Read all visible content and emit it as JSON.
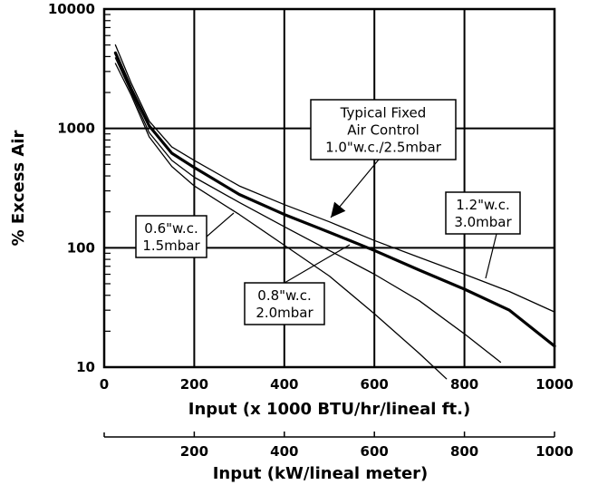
{
  "chart_data": {
    "type": "line",
    "ylabel": "% Excess Air",
    "xlabel": "Input (x 1000 BTU/hr/lineal ft.)",
    "xlabel2": "Input (kW/lineal meter)",
    "xlim": [
      0,
      1000
    ],
    "ylim": [
      10,
      10000
    ],
    "yscale": "log",
    "grid": true,
    "x_ticks": [
      "0",
      "200",
      "400",
      "600",
      "800",
      "1000"
    ],
    "x2_ticks": [
      "200",
      "400",
      "600",
      "800",
      "1000"
    ],
    "x2_tick_positions": [
      200,
      400,
      600,
      800,
      1000
    ],
    "x2_scale_factor": 0.2931,
    "y_ticks": [
      "10",
      "100",
      "1000",
      "10000"
    ],
    "series": [
      {
        "label": "0.6\"w.c. 1.5mbar",
        "emphasis": false,
        "x": [
          25,
          60,
          100,
          150,
          200,
          300,
          400,
          500,
          600,
          700,
          760
        ],
        "y": [
          3500,
          1900,
          850,
          480,
          330,
          190,
          105,
          58,
          28,
          13,
          8
        ]
      },
      {
        "label": "0.8\"w.c. 2.0mbar",
        "emphasis": false,
        "x": [
          25,
          60,
          100,
          150,
          200,
          300,
          400,
          500,
          600,
          700,
          800,
          880
        ],
        "y": [
          3900,
          2000,
          920,
          540,
          390,
          240,
          150,
          95,
          60,
          36,
          19,
          11
        ]
      },
      {
        "label": "Typical Fixed Air Control 1.0\"w.c./2.5mbar",
        "emphasis": true,
        "x": [
          25,
          60,
          100,
          150,
          200,
          300,
          400,
          500,
          600,
          700,
          800,
          900,
          1000
        ],
        "y": [
          4300,
          2150,
          1050,
          620,
          470,
          280,
          190,
          135,
          95,
          65,
          45,
          30,
          15
        ]
      },
      {
        "label": "1.2\"w.c. 3.0mbar",
        "emphasis": false,
        "x": [
          25,
          60,
          100,
          150,
          200,
          300,
          400,
          500,
          600,
          700,
          800,
          900,
          1000
        ],
        "y": [
          5000,
          2400,
          1150,
          700,
          540,
          330,
          230,
          165,
          115,
          83,
          60,
          43,
          29
        ]
      }
    ],
    "annotations": [
      {
        "lines": [
          "Typical Fixed",
          "Air Control",
          "1.0\"w.c./2.5mbar"
        ]
      },
      {
        "lines": [
          "1.2\"w.c.",
          "3.0mbar"
        ]
      },
      {
        "lines": [
          "0.6\"w.c.",
          "1.5mbar"
        ]
      },
      {
        "lines": [
          "0.8\"w.c.",
          "2.0mbar"
        ]
      }
    ]
  }
}
